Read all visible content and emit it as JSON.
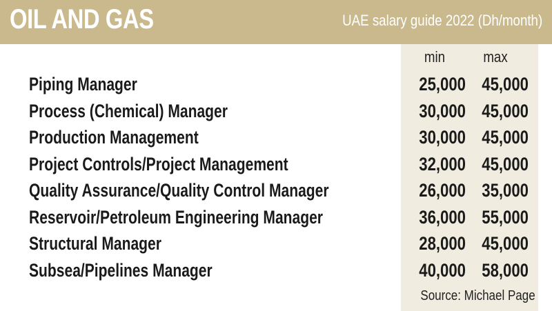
{
  "header": {
    "title": "OIL AND GAS",
    "subtitle": "UAE salary guide 2022 (Dh/month)"
  },
  "colors": {
    "header_bg": "#c9b98d",
    "number_column_bg": "#f0ece0"
  },
  "chart_data": {
    "type": "table",
    "title": "OIL AND GAS",
    "subtitle": "UAE salary guide 2022 (Dh/month)",
    "columns": [
      "min",
      "max"
    ],
    "rows": [
      {
        "role": "Piping Manager",
        "min": "25,000",
        "max": "45,000"
      },
      {
        "role": "Process (Chemical) Manager",
        "min": "30,000",
        "max": "45,000"
      },
      {
        "role": "Production Management",
        "min": "30,000",
        "max": "45,000"
      },
      {
        "role": "Project Controls/Project Management",
        "min": "32,000",
        "max": "45,000"
      },
      {
        "role": "Quality Assurance/Quality Control Manager",
        "min": "26,000",
        "max": "35,000"
      },
      {
        "role": "Reservoir/Petroleum Engineering Manager",
        "min": "36,000",
        "max": "55,000"
      },
      {
        "role": "Structural Manager",
        "min": "28,000",
        "max": "45,000"
      },
      {
        "role": "Subsea/Pipelines Manager",
        "min": "40,000",
        "max": "58,000"
      }
    ],
    "source": "Source: Michael Page"
  }
}
